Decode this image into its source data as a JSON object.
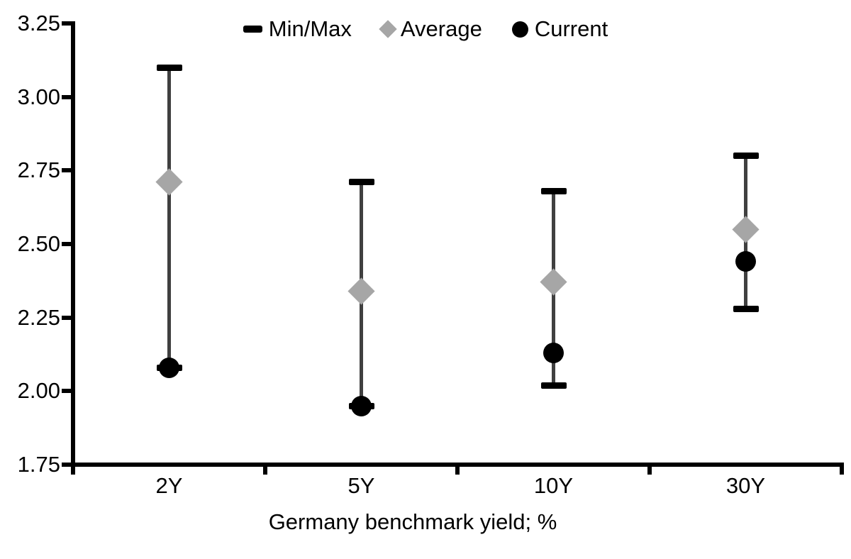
{
  "chart_data": {
    "type": "scatter",
    "subtype": "min-max-range-with-average-and-current",
    "title": "",
    "xlabel": "Germany benchmark yield; %",
    "ylabel": "",
    "categories": [
      "2Y",
      "5Y",
      "10Y",
      "30Y"
    ],
    "series": [
      {
        "name": "Min/Max",
        "marker": "range-bar",
        "min": [
          2.08,
          1.95,
          2.02,
          2.28
        ],
        "max": [
          3.1,
          2.71,
          2.68,
          2.8
        ]
      },
      {
        "name": "Average",
        "marker": "diamond",
        "values": [
          2.71,
          2.34,
          2.37,
          2.55
        ]
      },
      {
        "name": "Current",
        "marker": "circle",
        "values": [
          2.08,
          1.95,
          2.13,
          2.44
        ]
      }
    ],
    "ylim": [
      1.75,
      3.25
    ],
    "y_tick_step": 0.25,
    "y_tick_labels": [
      "3.25",
      "3.00",
      "2.75",
      "2.50",
      "2.25",
      "2.00",
      "1.75"
    ],
    "grid": false,
    "legend_position": "top-center"
  },
  "colors": {
    "background": "#ffffff",
    "text": "#000000",
    "axis": "#000000",
    "range_line": "#404040",
    "min_max_cap": "#000000",
    "average_marker": "#a6a6a6",
    "current_marker": "#000000"
  }
}
